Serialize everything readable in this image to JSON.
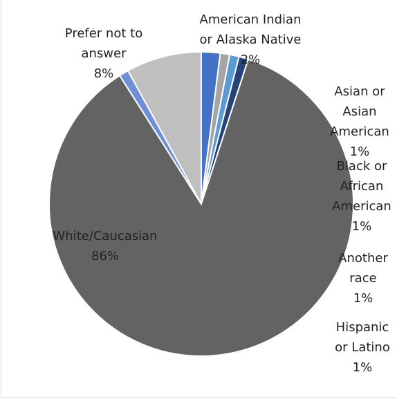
{
  "chart_data": {
    "type": "pie",
    "categories": [
      "American Indian or Alaska Native",
      "Asian or Asian American",
      "Black or African American",
      "Another race",
      "White/Caucasian",
      "Hispanic or Latino",
      "Prefer not to answer"
    ],
    "values": [
      2,
      1,
      1,
      1,
      86,
      1,
      8
    ],
    "value_labels": [
      "2%",
      "1%",
      "1%",
      "1%",
      "86%",
      "1%",
      "8%"
    ],
    "colors": [
      "#4472c4",
      "#a5a5a5",
      "#5b9bd5",
      "#264478",
      "#636363",
      "#6f8fd8",
      "#bfbfbf"
    ]
  }
}
